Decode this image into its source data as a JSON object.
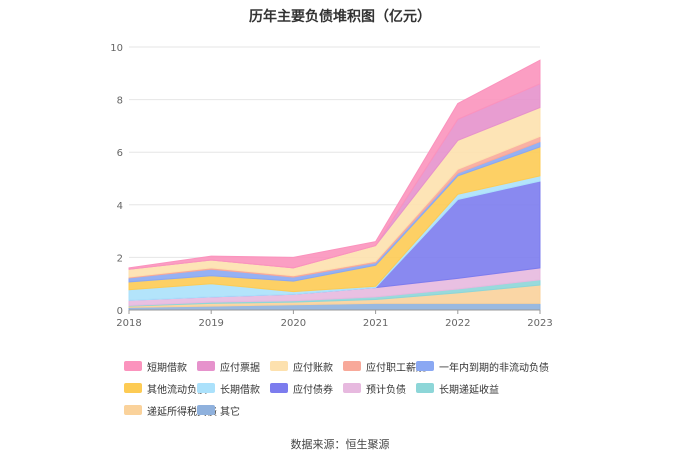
{
  "title": "历年主要负债堆积图（亿元）",
  "source": "数据来源：恒生聚源",
  "chart_data": {
    "type": "area",
    "stacked": true,
    "title": "历年主要负债堆积图（亿元）",
    "xlabel": "",
    "ylabel": "",
    "x": [
      "2018",
      "2019",
      "2020",
      "2021",
      "2022",
      "2023"
    ],
    "ylim": [
      0,
      10
    ],
    "yticks": [
      "0",
      "2",
      "4",
      "6",
      "8",
      "10"
    ],
    "grid": true,
    "legend_position": "bottom",
    "series": [
      {
        "name": "其它",
        "color": "#8fb1dd",
        "values": [
          0.1,
          0.15,
          0.2,
          0.25,
          0.25,
          0.25
        ]
      },
      {
        "name": "递延所得税负债",
        "color": "#fad29b",
        "values": [
          0.05,
          0.1,
          0.1,
          0.15,
          0.4,
          0.7
        ]
      },
      {
        "name": "长期递延收益",
        "color": "#8dd6d8",
        "values": [
          0.02,
          0.05,
          0.05,
          0.1,
          0.15,
          0.2
        ]
      },
      {
        "name": "预计负债",
        "color": "#e7b9df",
        "values": [
          0.2,
          0.2,
          0.25,
          0.35,
          0.4,
          0.45
        ]
      },
      {
        "name": "应付债券",
        "color": "#7c7cee",
        "values": [
          0,
          0,
          0,
          0,
          3.0,
          3.3
        ]
      },
      {
        "name": "长期借款",
        "color": "#abe1fb",
        "values": [
          0.4,
          0.5,
          0.1,
          0.05,
          0.2,
          0.2
        ]
      },
      {
        "name": "其他流动负债",
        "color": "#fdcb54",
        "values": [
          0.3,
          0.3,
          0.4,
          0.8,
          0.7,
          1.1
        ]
      },
      {
        "name": "一年内到期的非流动负债",
        "color": "#8aa8f3",
        "values": [
          0.15,
          0.25,
          0.15,
          0.1,
          0.1,
          0.2
        ]
      },
      {
        "name": "应付职工薪酬",
        "color": "#f8a99a",
        "values": [
          0.03,
          0.05,
          0.05,
          0.05,
          0.15,
          0.2
        ]
      },
      {
        "name": "应付账款",
        "color": "#fde1ae",
        "values": [
          0.3,
          0.3,
          0.3,
          0.6,
          1.1,
          1.1
        ]
      },
      {
        "name": "应付票据",
        "color": "#e692cc",
        "values": [
          0,
          0,
          0,
          0,
          0.8,
          0.9
        ]
      },
      {
        "name": "短期借款",
        "color": "#fb93bd",
        "values": [
          0.05,
          0.15,
          0.4,
          0.15,
          0.6,
          0.9
        ]
      }
    ]
  },
  "legend_order": [
    "短期借款",
    "应付票据",
    "应付账款",
    "应付职工薪酬",
    "一年内到期的非流动负债",
    "其他流动负债",
    "长期借款",
    "应付债券",
    "预计负债",
    "长期递延收益",
    "递延所得税负债",
    "其它"
  ]
}
